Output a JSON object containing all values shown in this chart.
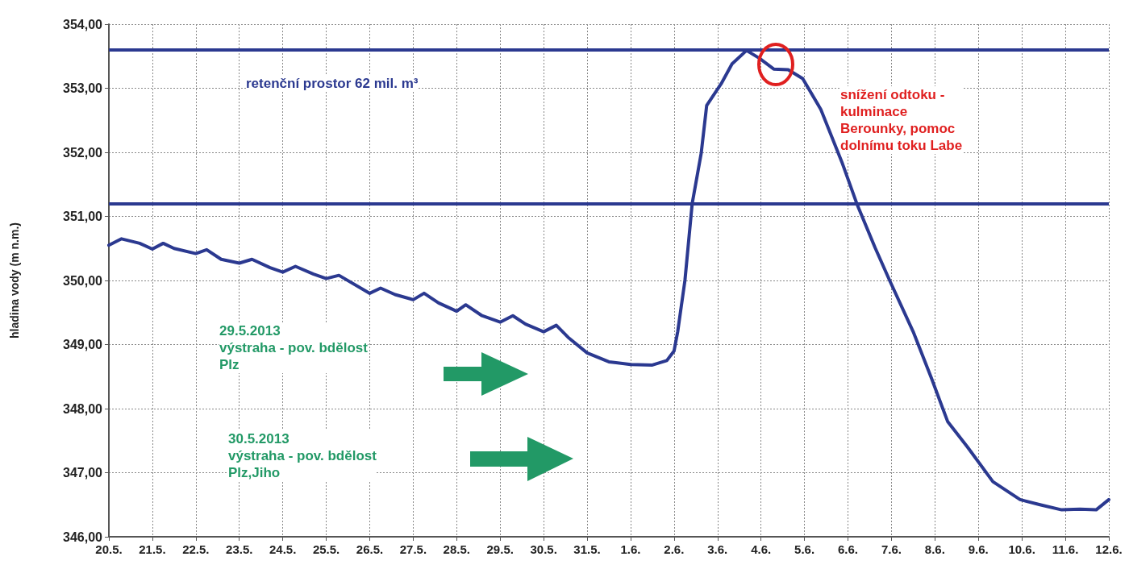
{
  "chart_data": {
    "type": "line",
    "ylabel": "hladina vody (m n.m.)",
    "x": [
      "--05-20T00:00",
      "--05-20T07:00",
      "--05-20T17:00",
      "--05-21T00:00",
      "--05-21T06:00",
      "--05-21T12:00",
      "--05-22T00:00",
      "--05-22T06:00",
      "--05-22T14:00",
      "--05-23T00:00",
      "--05-23T07:00",
      "--05-23T17:00",
      "--05-24T00:00",
      "--05-24T07:00",
      "--05-24T17:00",
      "--05-25T00:00",
      "--05-25T07:00",
      "--05-26T00:00",
      "--05-26T06:00",
      "--05-26T14:00",
      "--05-27T00:00",
      "--05-27T06:00",
      "--05-27T14:00",
      "--05-28T00:00",
      "--05-28T05:00",
      "--05-28T14:00",
      "--05-29T00:00",
      "--05-29T07:00",
      "--05-29T14:00",
      "--05-30T00:00",
      "--05-30T07:00",
      "--05-30T14:00",
      "--05-31T00:00",
      "--05-31T12:00",
      "--06-01T00:00",
      "--06-01T12:00",
      "--06-01T20:00",
      "--06-02T00:00",
      "--06-02T02:00",
      "--06-02T04:00",
      "--06-02T06:00",
      "--06-02T10:00",
      "--06-02T15:00",
      "--06-02T18:00",
      "--06-03T02:00",
      "--06-03T08:00",
      "--06-03T16:00",
      "--06-03T23:00",
      "--06-04T07:00",
      "--06-04T15:00",
      "--06-04T23:00",
      "--06-05T09:00",
      "--06-05T21:00",
      "--06-06T05:00",
      "--06-06T15:00",
      "--06-06T23:00",
      "--06-07T12:00",
      "--06-07T22:00",
      "--06-08T07:00",
      "--06-08T18:00",
      "--06-09T08:00",
      "--06-09T23:00",
      "--06-10T10:00",
      "--06-10T22:00",
      "--06-11T08:00",
      "--06-11T17:00",
      "--06-12T00:00"
    ],
    "series": [
      {
        "color": "#2b3990",
        "values": [
          350.55,
          350.65,
          350.58,
          350.49,
          350.58,
          350.5,
          350.42,
          350.48,
          350.33,
          350.27,
          350.33,
          350.2,
          350.13,
          350.22,
          350.1,
          350.03,
          350.08,
          349.8,
          349.88,
          349.78,
          349.7,
          349.8,
          349.65,
          349.52,
          349.62,
          349.45,
          349.35,
          349.45,
          349.32,
          349.2,
          349.3,
          349.1,
          348.87,
          348.73,
          348.69,
          348.68,
          348.75,
          348.9,
          349.2,
          349.6,
          350.0,
          351.2,
          351.99,
          352.73,
          353.07,
          353.38,
          353.59,
          353.47,
          353.3,
          353.29,
          353.15,
          352.67,
          351.82,
          351.19,
          350.51,
          350.0,
          349.2,
          348.48,
          347.8,
          347.4,
          346.86,
          346.58,
          346.5,
          346.42,
          346.43,
          346.42,
          346.58
        ]
      }
    ],
    "xlim": [
      "--05-20T00:00",
      "--06-12T00:00"
    ],
    "xticks": [
      {
        "value": "--05-20",
        "label": "20.5."
      },
      {
        "value": "--05-21",
        "label": "21.5."
      },
      {
        "value": "--05-22",
        "label": "22.5."
      },
      {
        "value": "--05-23",
        "label": "23.5."
      },
      {
        "value": "--05-24",
        "label": "24.5."
      },
      {
        "value": "--05-25",
        "label": "25.5."
      },
      {
        "value": "--05-26",
        "label": "26.5."
      },
      {
        "value": "--05-27",
        "label": "27.5."
      },
      {
        "value": "--05-28",
        "label": "28.5."
      },
      {
        "value": "--05-29",
        "label": "29.5."
      },
      {
        "value": "--05-30",
        "label": "30.5."
      },
      {
        "value": "--05-31",
        "label": "31.5."
      },
      {
        "value": "--06-01",
        "label": "1.6."
      },
      {
        "value": "--06-02",
        "label": "2.6."
      },
      {
        "value": "--06-03",
        "label": "3.6."
      },
      {
        "value": "--06-04",
        "label": "4.6."
      },
      {
        "value": "--06-05",
        "label": "5.6."
      },
      {
        "value": "--06-06",
        "label": "6.6."
      },
      {
        "value": "--06-07",
        "label": "7.6."
      },
      {
        "value": "--06-08",
        "label": "8.6."
      },
      {
        "value": "--06-09",
        "label": "9.6."
      },
      {
        "value": "--06-10",
        "label": "10.6."
      },
      {
        "value": "--06-11",
        "label": "11.6."
      },
      {
        "value": "--06-12",
        "label": "12.6."
      }
    ],
    "ylim": [
      346,
      354
    ],
    "yticks": [
      {
        "value": 346,
        "label": "346,00"
      },
      {
        "value": 347,
        "label": "347,00"
      },
      {
        "value": 348,
        "label": "348,00"
      },
      {
        "value": 349,
        "label": "349,00"
      },
      {
        "value": 350,
        "label": "350,00"
      },
      {
        "value": 351,
        "label": "351,00"
      },
      {
        "value": 352,
        "label": "352,00"
      },
      {
        "value": 353,
        "label": "353,00"
      },
      {
        "value": 354,
        "label": "354,00"
      }
    ],
    "ref_lines": [
      {
        "axis": "y",
        "value": 353.6,
        "color": "#2b3990"
      },
      {
        "axis": "y",
        "value": 351.2,
        "color": "#2b3990"
      }
    ],
    "annotations": [
      "retenční prostor 62 mil. m³",
      "snížení odtoku -\nkulminace\nBerounky, pomoc\ndolnímu toku Labe",
      "29.5.2013\nvýstraha - pov. bdělost\nPlz",
      "30.5.2013\nvýstraha - pov. bdělost\nPlz,Jiho"
    ],
    "grid": true,
    "marker": "none",
    "line_style": "solid"
  }
}
